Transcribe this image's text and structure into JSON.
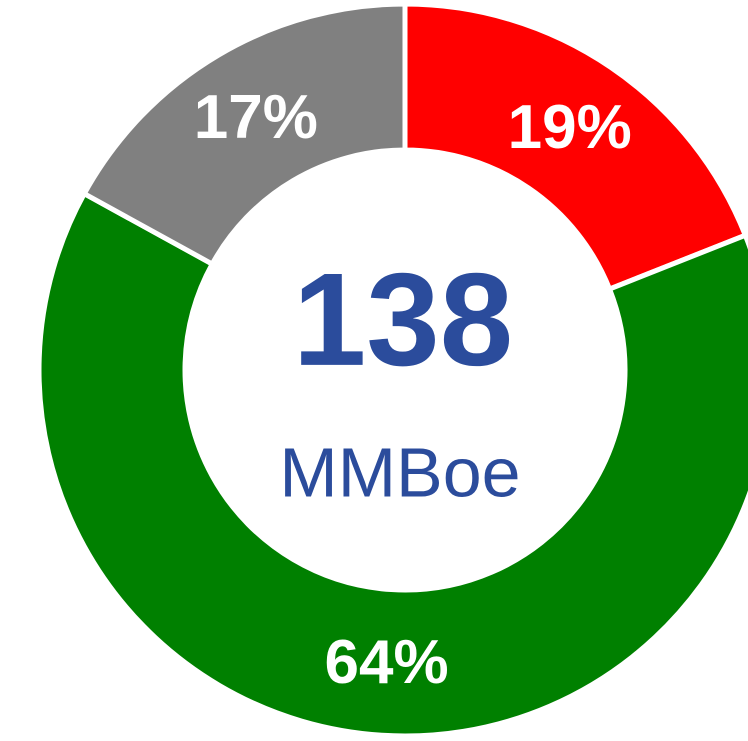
{
  "chart_data": {
    "type": "donut",
    "values": [
      19,
      64,
      17
    ],
    "value_labels": [
      "19%",
      "64%",
      "17%"
    ],
    "colors": [
      "#ff0000",
      "#008000",
      "#808080"
    ],
    "total": 138,
    "total_unit": "MMBoe"
  }
}
